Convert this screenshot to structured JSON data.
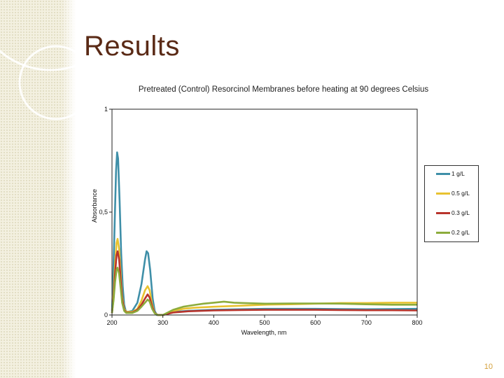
{
  "slide": {
    "title": "Results",
    "number": "10"
  },
  "colors": {
    "title": "#5a2a16",
    "series_1": "#3f8fa8",
    "series_2": "#e8c230",
    "series_3": "#b8342c",
    "series_4": "#8cac3c",
    "slide_number": "#d4a03a"
  },
  "chart_data": {
    "type": "line",
    "title": "Pretreated (Control) Resorcinol Membranes before heating at 90 degrees Celsius",
    "xlabel": "Wavelength, nm",
    "ylabel": "Absorbance",
    "xlim": [
      200,
      800
    ],
    "ylim": [
      0,
      1
    ],
    "x_ticks": [
      "200",
      "300",
      "400",
      "500",
      "600",
      "700",
      "800"
    ],
    "y_ticks": [
      "0",
      "0,5",
      "1"
    ],
    "grid": false,
    "legend_position": "right",
    "series": [
      {
        "name": "1 g/L",
        "color": "#3f8fa8",
        "points": [
          [
            200,
            0.02
          ],
          [
            202,
            0.15
          ],
          [
            205,
            0.42
          ],
          [
            208,
            0.7
          ],
          [
            210,
            0.79
          ],
          [
            212,
            0.76
          ],
          [
            215,
            0.55
          ],
          [
            218,
            0.3
          ],
          [
            221,
            0.14
          ],
          [
            224,
            0.05
          ],
          [
            227,
            0.02
          ],
          [
            230,
            0.015
          ],
          [
            240,
            0.02
          ],
          [
            250,
            0.06
          ],
          [
            258,
            0.15
          ],
          [
            265,
            0.27
          ],
          [
            268,
            0.31
          ],
          [
            271,
            0.3
          ],
          [
            275,
            0.22
          ],
          [
            280,
            0.08
          ],
          [
            284,
            0.02
          ],
          [
            288,
            0.0
          ],
          [
            300,
            0.0
          ],
          [
            320,
            0.015
          ],
          [
            350,
            0.02
          ],
          [
            400,
            0.025
          ],
          [
            450,
            0.028
          ],
          [
            500,
            0.03
          ],
          [
            550,
            0.03
          ],
          [
            600,
            0.03
          ],
          [
            650,
            0.029
          ],
          [
            700,
            0.028
          ],
          [
            750,
            0.029
          ],
          [
            800,
            0.03
          ]
        ]
      },
      {
        "name": "0.5 g/L",
        "color": "#e8c230",
        "points": [
          [
            200,
            0.01
          ],
          [
            203,
            0.1
          ],
          [
            206,
            0.25
          ],
          [
            209,
            0.35
          ],
          [
            211,
            0.37
          ],
          [
            214,
            0.32
          ],
          [
            217,
            0.2
          ],
          [
            220,
            0.09
          ],
          [
            224,
            0.03
          ],
          [
            228,
            0.015
          ],
          [
            240,
            0.015
          ],
          [
            250,
            0.03
          ],
          [
            258,
            0.07
          ],
          [
            265,
            0.12
          ],
          [
            270,
            0.14
          ],
          [
            274,
            0.12
          ],
          [
            279,
            0.05
          ],
          [
            284,
            0.01
          ],
          [
            290,
            0.0
          ],
          [
            300,
            0.0
          ],
          [
            320,
            0.02
          ],
          [
            340,
            0.03
          ],
          [
            360,
            0.035
          ],
          [
            400,
            0.04
          ],
          [
            450,
            0.045
          ],
          [
            500,
            0.05
          ],
          [
            550,
            0.052
          ],
          [
            600,
            0.055
          ],
          [
            650,
            0.058
          ],
          [
            700,
            0.058
          ],
          [
            750,
            0.06
          ],
          [
            800,
            0.06
          ]
        ]
      },
      {
        "name": "0.3 g/L",
        "color": "#b8342c",
        "points": [
          [
            200,
            0.01
          ],
          [
            203,
            0.08
          ],
          [
            206,
            0.2
          ],
          [
            209,
            0.29
          ],
          [
            211,
            0.31
          ],
          [
            214,
            0.27
          ],
          [
            217,
            0.17
          ],
          [
            220,
            0.08
          ],
          [
            224,
            0.025
          ],
          [
            228,
            0.012
          ],
          [
            240,
            0.012
          ],
          [
            250,
            0.025
          ],
          [
            258,
            0.05
          ],
          [
            265,
            0.08
          ],
          [
            270,
            0.1
          ],
          [
            274,
            0.085
          ],
          [
            279,
            0.04
          ],
          [
            284,
            0.01
          ],
          [
            290,
            0.0
          ],
          [
            300,
            0.0
          ],
          [
            320,
            0.012
          ],
          [
            350,
            0.018
          ],
          [
            400,
            0.022
          ],
          [
            450,
            0.024
          ],
          [
            500,
            0.025
          ],
          [
            550,
            0.025
          ],
          [
            600,
            0.025
          ],
          [
            650,
            0.024
          ],
          [
            700,
            0.023
          ],
          [
            750,
            0.023
          ],
          [
            800,
            0.022
          ]
        ]
      },
      {
        "name": "0.2 g/L",
        "color": "#8cac3c",
        "points": [
          [
            200,
            0.01
          ],
          [
            203,
            0.07
          ],
          [
            206,
            0.16
          ],
          [
            209,
            0.22
          ],
          [
            211,
            0.23
          ],
          [
            214,
            0.2
          ],
          [
            217,
            0.13
          ],
          [
            220,
            0.06
          ],
          [
            224,
            0.02
          ],
          [
            228,
            0.01
          ],
          [
            240,
            0.01
          ],
          [
            250,
            0.02
          ],
          [
            258,
            0.04
          ],
          [
            265,
            0.06
          ],
          [
            270,
            0.075
          ],
          [
            274,
            0.065
          ],
          [
            279,
            0.03
          ],
          [
            284,
            0.008
          ],
          [
            290,
            0.0
          ],
          [
            300,
            0.0
          ],
          [
            320,
            0.025
          ],
          [
            340,
            0.04
          ],
          [
            360,
            0.048
          ],
          [
            380,
            0.055
          ],
          [
            400,
            0.06
          ],
          [
            420,
            0.065
          ],
          [
            440,
            0.06
          ],
          [
            460,
            0.058
          ],
          [
            500,
            0.055
          ],
          [
            550,
            0.056
          ],
          [
            600,
            0.056
          ],
          [
            650,
            0.055
          ],
          [
            700,
            0.052
          ],
          [
            750,
            0.05
          ],
          [
            800,
            0.05
          ]
        ]
      }
    ]
  }
}
